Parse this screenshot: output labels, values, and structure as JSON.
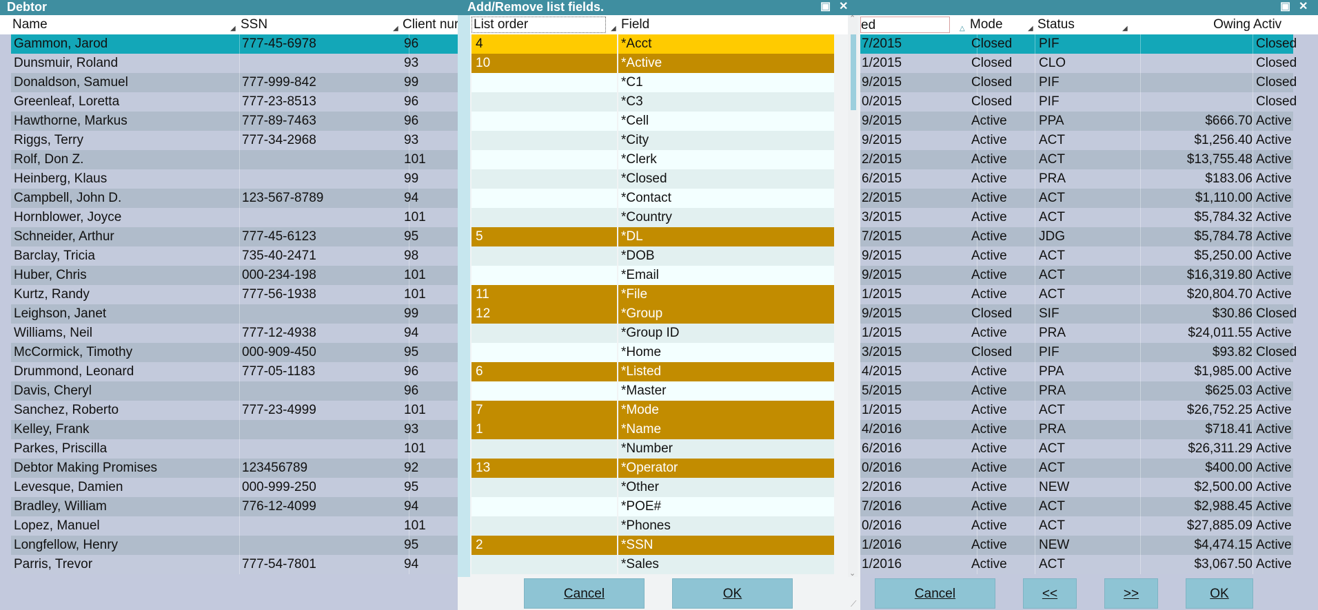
{
  "window": {
    "title": "Debtor"
  },
  "columns": {
    "name": "Name",
    "ssn": "SSN",
    "client": "Client nur",
    "date": "ed",
    "mode": "Mode",
    "status": "Status",
    "owing": "Owing",
    "active": "Activ"
  },
  "debtors": [
    {
      "name": "Gammon, Jarod",
      "ssn": "777-45-6978",
      "client": "96",
      "date": "7/2015",
      "mode": "Closed",
      "status": "PIF",
      "owing": "",
      "active": "Closed"
    },
    {
      "name": "Dunsmuir, Roland",
      "ssn": "",
      "client": "93",
      "date": "1/2015",
      "mode": "Closed",
      "status": "CLO",
      "owing": "",
      "active": "Closed"
    },
    {
      "name": "Donaldson, Samuel",
      "ssn": "777-999-842",
      "client": "99",
      "date": "9/2015",
      "mode": "Closed",
      "status": "PIF",
      "owing": "",
      "active": "Closed"
    },
    {
      "name": "Greenleaf, Loretta",
      "ssn": "777-23-8513",
      "client": "96",
      "date": "0/2015",
      "mode": "Closed",
      "status": "PIF",
      "owing": "",
      "active": "Closed"
    },
    {
      "name": "Hawthorne, Markus",
      "ssn": "777-89-7463",
      "client": "96",
      "date": "9/2015",
      "mode": "Active",
      "status": "PPA",
      "owing": "$666.70",
      "active": "Active"
    },
    {
      "name": "Riggs, Terry",
      "ssn": "777-34-2968",
      "client": "93",
      "date": "9/2015",
      "mode": "Active",
      "status": "ACT",
      "owing": "$1,256.40",
      "active": "Active"
    },
    {
      "name": "Rolf, Don Z.",
      "ssn": "",
      "client": "101",
      "date": "2/2015",
      "mode": "Active",
      "status": "ACT",
      "owing": "$13,755.48",
      "active": "Active"
    },
    {
      "name": "Heinberg, Klaus",
      "ssn": "",
      "client": "99",
      "date": "6/2015",
      "mode": "Active",
      "status": "PRA",
      "owing": "$183.06",
      "active": "Active"
    },
    {
      "name": "Campbell, John D.",
      "ssn": "123-567-8789",
      "client": "94",
      "date": "2/2015",
      "mode": "Active",
      "status": "ACT",
      "owing": "$1,110.00",
      "active": "Active"
    },
    {
      "name": "Hornblower, Joyce",
      "ssn": "",
      "client": "101",
      "date": "3/2015",
      "mode": "Active",
      "status": "ACT",
      "owing": "$5,784.32",
      "active": "Active"
    },
    {
      "name": "Schneider, Arthur",
      "ssn": "777-45-6123",
      "client": "95",
      "date": "7/2015",
      "mode": "Active",
      "status": "JDG",
      "owing": "$5,784.78",
      "active": "Active"
    },
    {
      "name": "Barclay, Tricia",
      "ssn": "735-40-2471",
      "client": "98",
      "date": "9/2015",
      "mode": "Active",
      "status": "ACT",
      "owing": "$5,250.00",
      "active": "Active"
    },
    {
      "name": "Huber, Chris",
      "ssn": "000-234-198",
      "client": "101",
      "date": "9/2015",
      "mode": "Active",
      "status": "ACT",
      "owing": "$16,319.80",
      "active": "Active"
    },
    {
      "name": "Kurtz, Randy",
      "ssn": "777-56-1938",
      "client": "101",
      "date": "1/2015",
      "mode": "Active",
      "status": "ACT",
      "owing": "$20,804.70",
      "active": "Active"
    },
    {
      "name": "Leighson, Janet",
      "ssn": "",
      "client": "99",
      "date": "9/2015",
      "mode": "Closed",
      "status": "SIF",
      "owing": "$30.86",
      "active": "Closed"
    },
    {
      "name": "Williams, Neil",
      "ssn": "777-12-4938",
      "client": "94",
      "date": "1/2015",
      "mode": "Active",
      "status": "PRA",
      "owing": "$24,011.55",
      "active": "Active"
    },
    {
      "name": "McCormick, Timothy",
      "ssn": "000-909-450",
      "client": "95",
      "date": "3/2015",
      "mode": "Closed",
      "status": "PIF",
      "owing": "$93.82",
      "active": "Closed"
    },
    {
      "name": "Drummond, Leonard",
      "ssn": "777-05-1183",
      "client": "96",
      "date": "4/2015",
      "mode": "Active",
      "status": "PPA",
      "owing": "$1,985.00",
      "active": "Active"
    },
    {
      "name": "Davis, Cheryl",
      "ssn": "",
      "client": "96",
      "date": "5/2015",
      "mode": "Active",
      "status": "PRA",
      "owing": "$625.03",
      "active": "Active"
    },
    {
      "name": "Sanchez, Roberto",
      "ssn": "777-23-4999",
      "client": "101",
      "date": "1/2015",
      "mode": "Active",
      "status": "ACT",
      "owing": "$26,752.25",
      "active": "Active"
    },
    {
      "name": "Kelley, Frank",
      "ssn": "",
      "client": "93",
      "date": "4/2016",
      "mode": "Active",
      "status": "PRA",
      "owing": "$718.41",
      "active": "Active"
    },
    {
      "name": "Parkes, Priscilla",
      "ssn": "",
      "client": "101",
      "date": "6/2016",
      "mode": "Active",
      "status": "ACT",
      "owing": "$26,311.29",
      "active": "Active"
    },
    {
      "name": "Debtor Making Promises",
      "ssn": "123456789",
      "client": "92",
      "date": "0/2016",
      "mode": "Active",
      "status": "ACT",
      "owing": "$400.00",
      "active": "Active"
    },
    {
      "name": "Levesque, Damien",
      "ssn": "000-999-250",
      "client": "95",
      "date": "2/2016",
      "mode": "Active",
      "status": "NEW",
      "owing": "$2,500.00",
      "active": "Active"
    },
    {
      "name": "Bradley, William",
      "ssn": "776-12-4099",
      "client": "94",
      "date": "7/2016",
      "mode": "Active",
      "status": "ACT",
      "owing": "$2,988.45",
      "active": "Active"
    },
    {
      "name": "Lopez, Manuel",
      "ssn": "",
      "client": "101",
      "date": "0/2016",
      "mode": "Active",
      "status": "ACT",
      "owing": "$27,885.09",
      "active": "Active"
    },
    {
      "name": "Longfellow, Henry",
      "ssn": "",
      "client": "95",
      "date": "1/2016",
      "mode": "Active",
      "status": "NEW",
      "owing": "$4,474.15",
      "active": "Active"
    },
    {
      "name": "Parris, Trevor",
      "ssn": "777-54-7801",
      "client": "94",
      "date": "1/2016",
      "mode": "Active",
      "status": "ACT",
      "owing": "$3,067.50",
      "active": "Active"
    }
  ],
  "main_buttons": {
    "cancel": "Cancel",
    "prev": "<<",
    "next": ">>",
    "ok": "OK"
  },
  "dialog": {
    "title": "Add/Remove list fields.",
    "col_order": "List order",
    "col_field": "Field",
    "cancel": "Cancel",
    "ok": "OK",
    "fields": [
      {
        "order": "4",
        "field": "*Acct",
        "sel": "current"
      },
      {
        "order": "10",
        "field": "*Active",
        "sel": "yes"
      },
      {
        "order": "",
        "field": "*C1",
        "sel": "no"
      },
      {
        "order": "",
        "field": "*C3",
        "sel": "no"
      },
      {
        "order": "",
        "field": "*Cell",
        "sel": "no"
      },
      {
        "order": "",
        "field": "*City",
        "sel": "no"
      },
      {
        "order": "",
        "field": "*Clerk",
        "sel": "no"
      },
      {
        "order": "",
        "field": "*Closed",
        "sel": "no"
      },
      {
        "order": "",
        "field": "*Contact",
        "sel": "no"
      },
      {
        "order": "",
        "field": "*Country",
        "sel": "no"
      },
      {
        "order": "5",
        "field": "*DL",
        "sel": "yes"
      },
      {
        "order": "",
        "field": "*DOB",
        "sel": "no"
      },
      {
        "order": "",
        "field": "*Email",
        "sel": "no"
      },
      {
        "order": "11",
        "field": "*File",
        "sel": "yes"
      },
      {
        "order": "12",
        "field": "*Group",
        "sel": "yes"
      },
      {
        "order": "",
        "field": "*Group ID",
        "sel": "no"
      },
      {
        "order": "",
        "field": "*Home",
        "sel": "no"
      },
      {
        "order": "6",
        "field": "*Listed",
        "sel": "yes"
      },
      {
        "order": "",
        "field": "*Master",
        "sel": "no"
      },
      {
        "order": "7",
        "field": "*Mode",
        "sel": "yes"
      },
      {
        "order": "1",
        "field": "*Name",
        "sel": "yes"
      },
      {
        "order": "",
        "field": "*Number",
        "sel": "no"
      },
      {
        "order": "13",
        "field": "*Operator",
        "sel": "yes"
      },
      {
        "order": "",
        "field": "*Other",
        "sel": "no"
      },
      {
        "order": "",
        "field": "*POE#",
        "sel": "no"
      },
      {
        "order": "",
        "field": "*Phones",
        "sel": "no"
      },
      {
        "order": "2",
        "field": "*SSN",
        "sel": "yes"
      },
      {
        "order": "",
        "field": "*Sales",
        "sel": "no"
      }
    ]
  },
  "colors": {
    "titlebar": "#3f8ea0",
    "selected_row": "#13a7b8",
    "row_dark": "#b0bccb",
    "row_light": "#c3cadc",
    "field_selected": "#c28c00",
    "field_current": "#ffcb00",
    "field_white": "#f3ffff",
    "field_alt": "#e2f0f0",
    "button": "#8ec4d4"
  }
}
